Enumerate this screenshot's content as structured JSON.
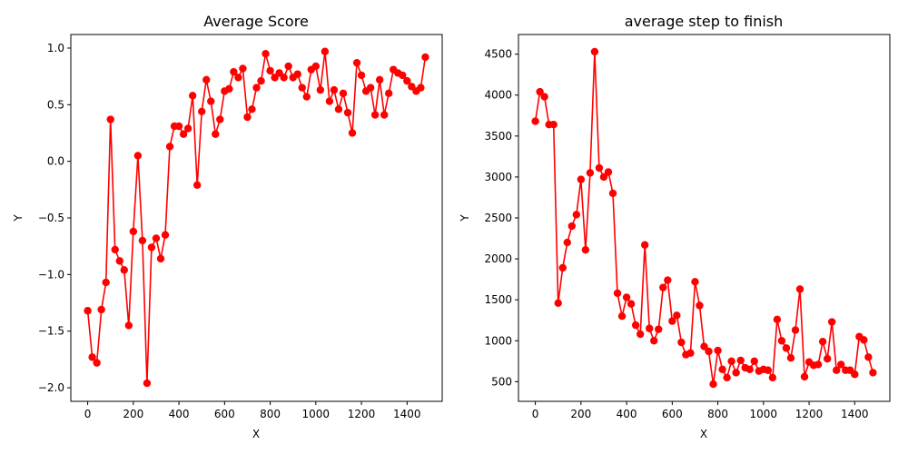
{
  "chart_data": [
    {
      "type": "line",
      "title": "Average Score",
      "xlabel": "X",
      "ylabel": "Y",
      "xlim": [
        -74,
        1554
      ],
      "ylim": [
        -2.12,
        1.12
      ],
      "xticks": [
        0,
        200,
        400,
        600,
        800,
        1000,
        1200,
        1400
      ],
      "yticks": [
        -2.0,
        -1.5,
        -1.0,
        -0.5,
        0.0,
        0.5,
        1.0
      ],
      "ytick_labels": [
        "−2.0",
        "−1.5",
        "−1.0",
        "−0.5",
        "0.0",
        "0.5",
        "1.0"
      ],
      "grid": false,
      "color": "#ff0000",
      "marker": "circle",
      "series": [
        {
          "x": [
            0,
            20,
            40,
            60,
            80,
            100,
            120,
            140,
            160,
            180,
            200,
            220,
            240,
            260,
            280,
            300,
            320,
            340,
            360,
            380,
            400,
            420,
            440,
            460,
            480,
            500,
            520,
            540,
            560,
            580,
            600,
            620,
            640,
            660,
            680,
            700,
            720,
            740,
            760,
            780,
            800,
            820,
            840,
            860,
            880,
            900,
            920,
            940,
            960,
            980,
            1000,
            1020,
            1040,
            1060,
            1080,
            1100,
            1120,
            1140,
            1160,
            1180,
            1200,
            1220,
            1240,
            1260,
            1280,
            1300,
            1320,
            1340,
            1360,
            1380,
            1400,
            1420,
            1440,
            1460,
            1480
          ],
          "y": [
            -1.32,
            -1.73,
            -1.78,
            -1.31,
            -1.07,
            0.37,
            -0.78,
            -0.88,
            -0.96,
            -1.45,
            -0.62,
            0.05,
            -0.7,
            -1.96,
            -0.76,
            -0.68,
            -0.86,
            -0.65,
            0.13,
            0.31,
            0.31,
            0.24,
            0.29,
            0.58,
            -0.21,
            0.44,
            0.72,
            0.53,
            0.24,
            0.37,
            0.62,
            0.64,
            0.79,
            0.74,
            0.82,
            0.39,
            0.46,
            0.65,
            0.71,
            0.95,
            0.8,
            0.74,
            0.78,
            0.74,
            0.84,
            0.74,
            0.77,
            0.65,
            0.57,
            0.81,
            0.84,
            0.63,
            0.97,
            0.53,
            0.63,
            0.46,
            0.6,
            0.43,
            0.25,
            0.87,
            0.76,
            0.62,
            0.65,
            0.41,
            0.72,
            0.41,
            0.6,
            0.81,
            0.78,
            0.76,
            0.71,
            0.66,
            0.62,
            0.65,
            0.92
          ]
        }
      ]
    },
    {
      "type": "line",
      "title": "average step to finish",
      "xlabel": "X",
      "ylabel": "Y",
      "xlim": [
        -74,
        1554
      ],
      "ylim": [
        260,
        4740
      ],
      "xticks": [
        0,
        200,
        400,
        600,
        800,
        1000,
        1200,
        1400
      ],
      "yticks": [
        500,
        1000,
        1500,
        2000,
        2500,
        3000,
        3500,
        4000,
        4500
      ],
      "ytick_labels": [
        "500",
        "1000",
        "1500",
        "2000",
        "2500",
        "3000",
        "3500",
        "4000",
        "4500"
      ],
      "grid": false,
      "color": "#ff0000",
      "marker": "circle",
      "series": [
        {
          "x": [
            0,
            20,
            40,
            60,
            80,
            100,
            120,
            140,
            160,
            180,
            200,
            220,
            240,
            260,
            280,
            300,
            320,
            340,
            360,
            380,
            400,
            420,
            440,
            460,
            480,
            500,
            520,
            540,
            560,
            580,
            600,
            620,
            640,
            660,
            680,
            700,
            720,
            740,
            760,
            780,
            800,
            820,
            840,
            860,
            880,
            900,
            920,
            940,
            960,
            980,
            1000,
            1020,
            1040,
            1060,
            1080,
            1100,
            1120,
            1140,
            1160,
            1180,
            1200,
            1220,
            1240,
            1260,
            1280,
            1300,
            1320,
            1340,
            1360,
            1380,
            1400,
            1420,
            1440,
            1460,
            1480
          ],
          "y": [
            3680,
            4040,
            3980,
            3640,
            3640,
            1460,
            1890,
            2200,
            2400,
            2540,
            2970,
            2110,
            3050,
            4530,
            3110,
            3000,
            3060,
            2800,
            1580,
            1300,
            1530,
            1450,
            1190,
            1080,
            2170,
            1150,
            1000,
            1140,
            1650,
            1740,
            1240,
            1310,
            980,
            830,
            850,
            1720,
            1430,
            930,
            870,
            470,
            880,
            650,
            550,
            750,
            610,
            760,
            670,
            650,
            750,
            630,
            650,
            640,
            550,
            1260,
            1000,
            910,
            790,
            1130,
            1630,
            560,
            740,
            700,
            710,
            990,
            780,
            1230,
            640,
            710,
            640,
            640,
            590,
            1050,
            1010,
            800,
            610
          ]
        }
      ]
    }
  ]
}
